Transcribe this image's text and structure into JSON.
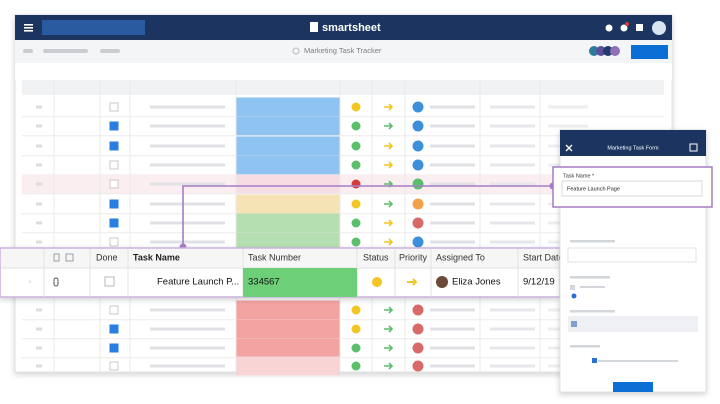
{
  "header": {
    "logo": "smartsheet"
  },
  "toolbar": {
    "sheet_name": "Marketing Task Tracker"
  },
  "grid": {
    "columns": [
      "Done",
      "Task Name",
      "Task Number",
      "Status",
      "Priority",
      "Assigned To",
      "Start Date"
    ],
    "highlighted_row": {
      "task_name": "Feature Launch P...",
      "task_number": "334567",
      "assigned_to": "Eliza Jones",
      "start_date": "9/12/19"
    }
  },
  "form": {
    "title": "Marketing Task Form",
    "field_label": "Task Name *",
    "field_value": "Feature Launch Page"
  }
}
